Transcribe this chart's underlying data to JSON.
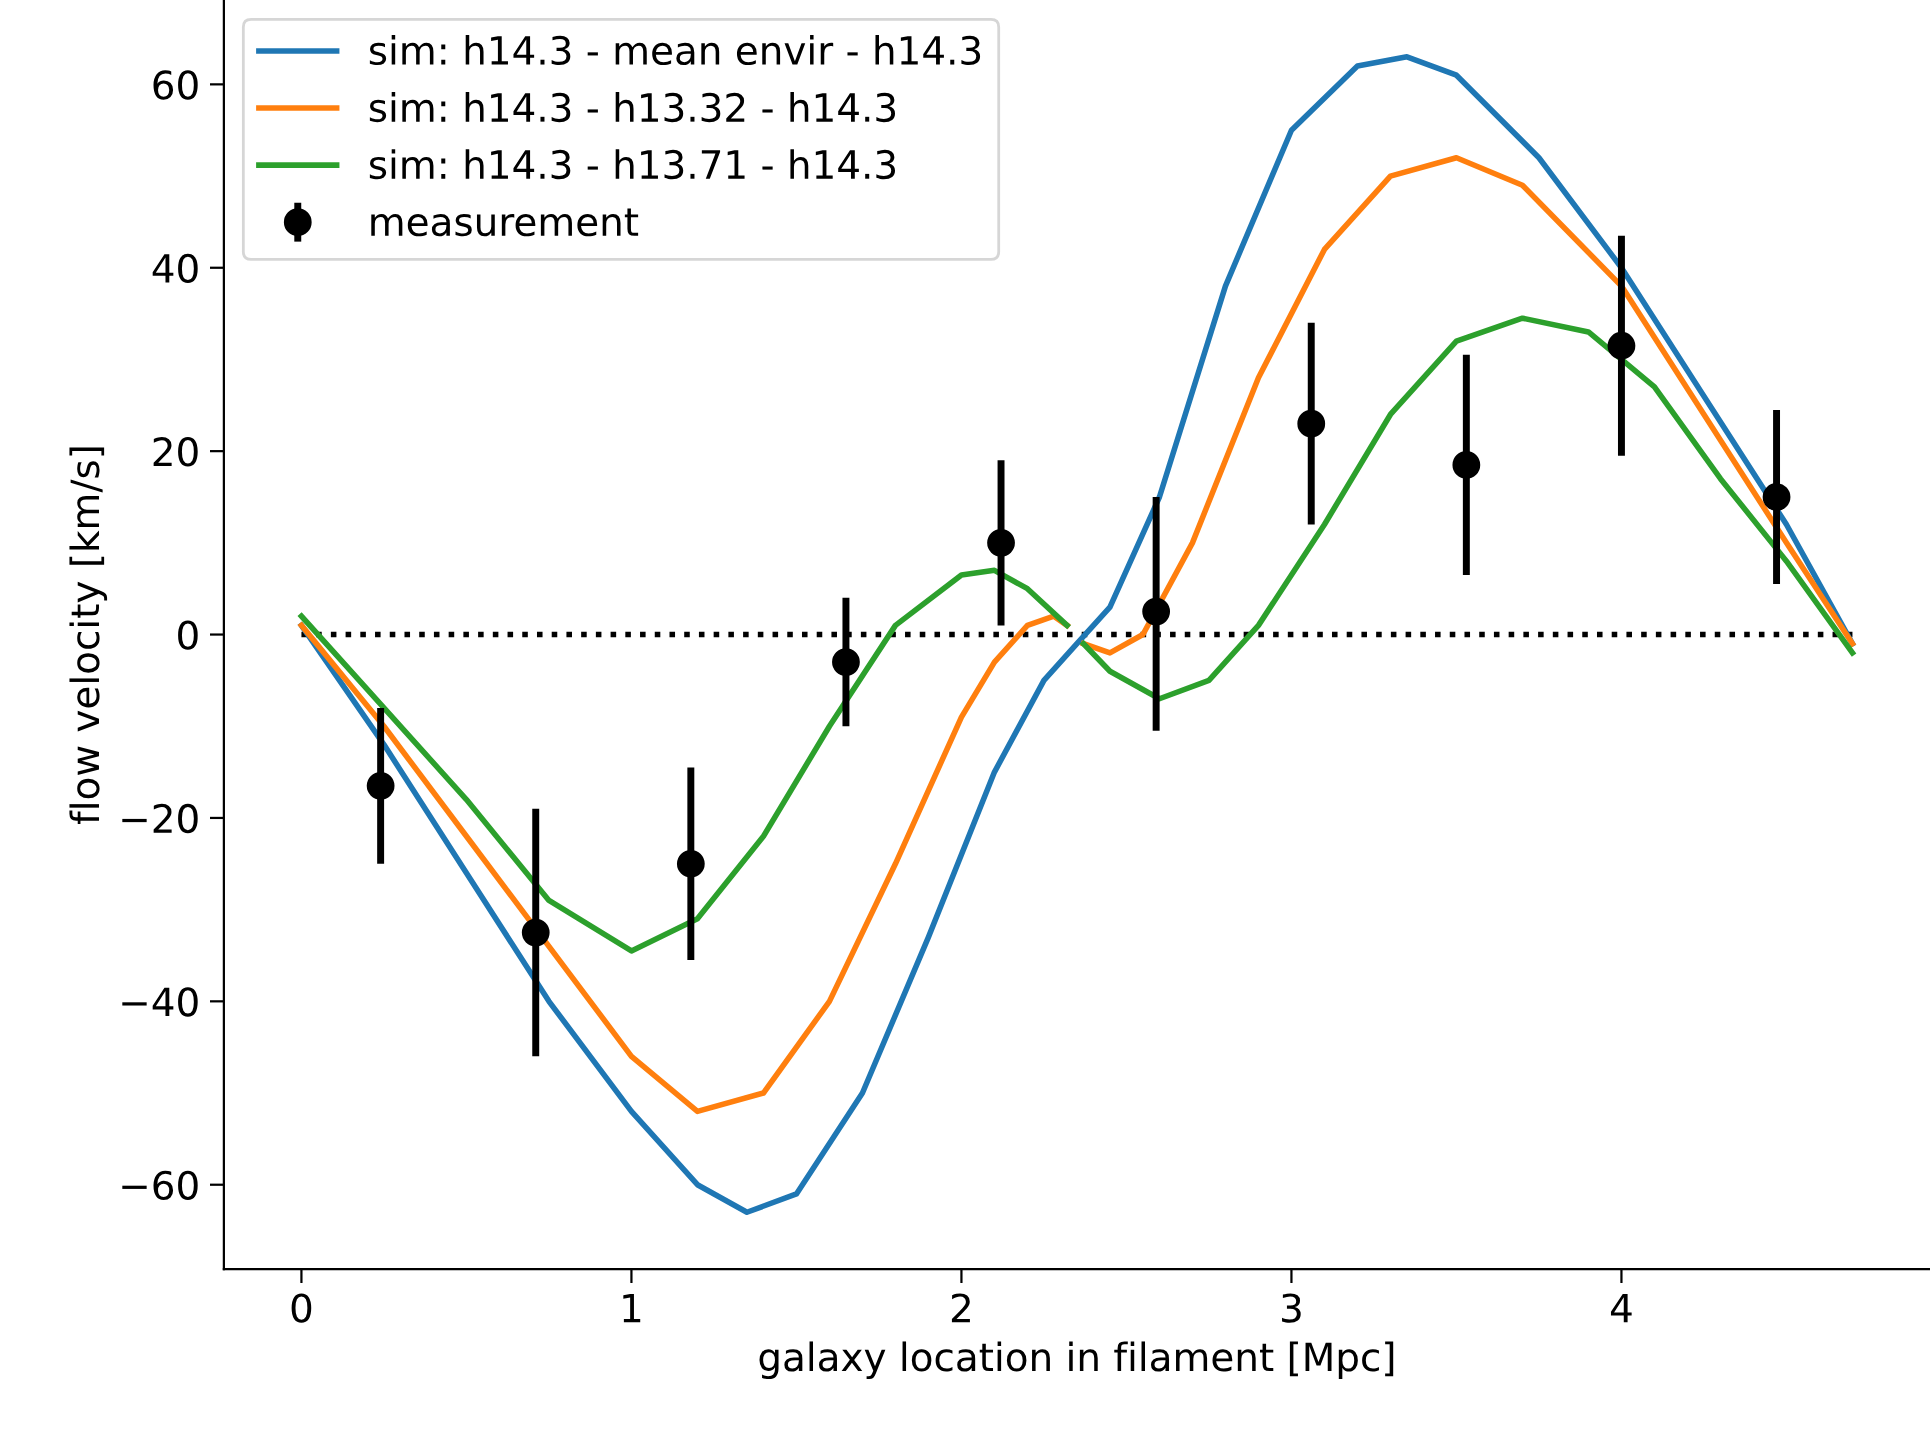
{
  "chart_data": {
    "type": "line",
    "xlabel": "galaxy location in filament [Mpc]",
    "ylabel": "flow velocity [km/s]",
    "xlim": [
      -0.235,
      4.935
    ],
    "ylim": [
      -69.2,
      69.2
    ],
    "xticks": [
      0,
      1,
      2,
      3,
      4
    ],
    "yticks": [
      -60,
      -40,
      -20,
      0,
      20,
      40,
      60
    ],
    "grid": false,
    "legend": "top left",
    "ref_lines": [
      {
        "axis": "y",
        "value": 0,
        "label": null,
        "color": "#000000",
        "line_style": "dotted"
      }
    ],
    "series": [
      {
        "name": "sim: h14.3 - mean envir - h14.3",
        "color": "#1f77b4",
        "x": [
          0,
          0.25,
          0.5,
          0.75,
          1.0,
          1.2,
          1.35,
          1.5,
          1.7,
          1.9,
          2.1,
          2.25,
          2.35,
          2.45,
          2.6,
          2.8,
          3.0,
          3.2,
          3.35,
          3.5,
          3.75,
          4.0,
          4.25,
          4.5,
          4.7
        ],
        "values": [
          1,
          -12,
          -26,
          -40,
          -52,
          -60,
          -63,
          -61,
          -50,
          -33,
          -15,
          -5,
          -1,
          3,
          15,
          38,
          55,
          62,
          63,
          61,
          52,
          40,
          26,
          12,
          -1
        ]
      },
      {
        "name": "sim: h14.3 - h13.32 - h14.3",
        "color": "#ff7f0e",
        "x": [
          0,
          0.25,
          0.5,
          0.75,
          1.0,
          1.2,
          1.4,
          1.6,
          1.8,
          2.0,
          2.1,
          2.2,
          2.28,
          2.32,
          2.34,
          2.37,
          2.45,
          2.55,
          2.7,
          2.9,
          3.1,
          3.3,
          3.5,
          3.7,
          4.0,
          4.25,
          4.5,
          4.7
        ],
        "values": [
          1,
          -10,
          -22,
          -34,
          -46,
          -52,
          -50,
          -40,
          -25,
          -9,
          -3,
          1,
          2,
          1,
          null,
          -1,
          -2,
          0,
          10,
          28,
          42,
          50,
          52,
          49,
          38,
          24,
          10,
          -1
        ]
      },
      {
        "name": "sim: h14.3 - h13.71 - h14.3",
        "color": "#2ca02c",
        "x": [
          0,
          0.25,
          0.5,
          0.75,
          1.0,
          1.2,
          1.4,
          1.6,
          1.8,
          2.0,
          2.1,
          2.2,
          2.32,
          2.34,
          2.37,
          2.45,
          2.6,
          2.75,
          2.9,
          3.1,
          3.3,
          3.5,
          3.7,
          3.9,
          4.1,
          4.3,
          4.5,
          4.7
        ],
        "values": [
          2,
          -8,
          -18,
          -29,
          -34.5,
          -31,
          -22,
          -10,
          1,
          6.5,
          7,
          5,
          1,
          null,
          -1,
          -4,
          -7,
          -5,
          1,
          12,
          24,
          32,
          34.5,
          33,
          27,
          17,
          8,
          -2
        ]
      },
      {
        "name": "measurement",
        "color": "#000000",
        "type": "scatter",
        "marker": "circle",
        "x": [
          0.24,
          0.71,
          1.18,
          1.65,
          2.12,
          2.59,
          3.06,
          3.53,
          4.0,
          4.47
        ],
        "values": [
          -16.5,
          -32.5,
          -25,
          -3,
          10,
          2.5,
          23,
          18.5,
          31.5,
          15
        ],
        "errors": [
          [
            -25,
            -8
          ],
          [
            -46,
            -19
          ],
          [
            -35.5,
            -14.5
          ],
          [
            -10,
            4
          ],
          [
            1,
            19
          ],
          [
            -10.5,
            15
          ],
          [
            12,
            34
          ],
          [
            6.5,
            30.5
          ],
          [
            19.5,
            43.5
          ],
          [
            5.5,
            24.5
          ]
        ]
      }
    ]
  }
}
